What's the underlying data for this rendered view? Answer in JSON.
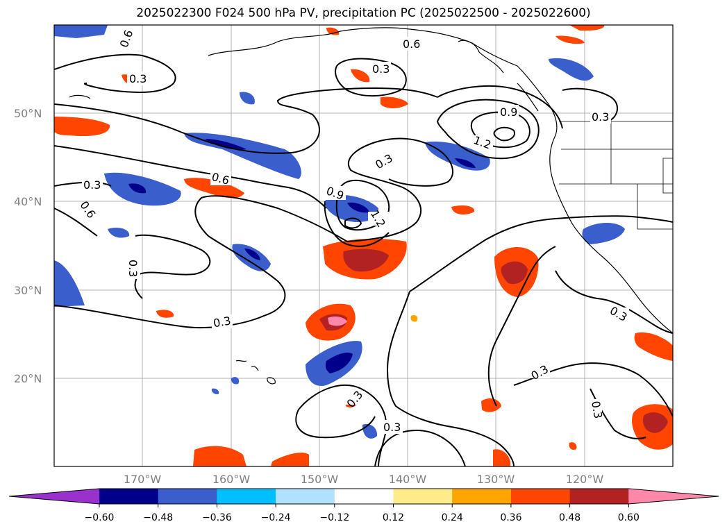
{
  "title": "2025022300 F024 500 hPa PV, precipitation PC (2025022500 - 2025022600)",
  "lat_labels": [
    "50°N",
    "40°N",
    "30°N",
    "20°N"
  ],
  "lon_labels": [
    "170°W",
    "160°W",
    "150°W",
    "140°W",
    "130°W",
    "120°W"
  ],
  "contour_levels": [
    "0.3",
    "0.6",
    "0.9",
    "1.2"
  ],
  "colorbar": {
    "ticks": [
      "−0.60",
      "−0.48",
      "−0.36",
      "−0.24",
      "−0.12",
      "0.12",
      "0.24",
      "0.36",
      "0.48",
      "0.60"
    ],
    "colors": [
      "#9932cc",
      "#00008b",
      "#3a5fcd",
      "#00bfff",
      "#b0e2ff",
      "#ffffff",
      "#ffeb8a",
      "#ffa500",
      "#ff4500",
      "#b22222",
      "#ff88aa"
    ]
  },
  "map": {
    "region": "North Pacific / US West Coast",
    "extent": {
      "lon_min": -180,
      "lon_max": -110,
      "lat_min": 10,
      "lat_max": 60
    },
    "field": "500 hPa PV (contours) and precipitation PC (shaded)"
  }
}
